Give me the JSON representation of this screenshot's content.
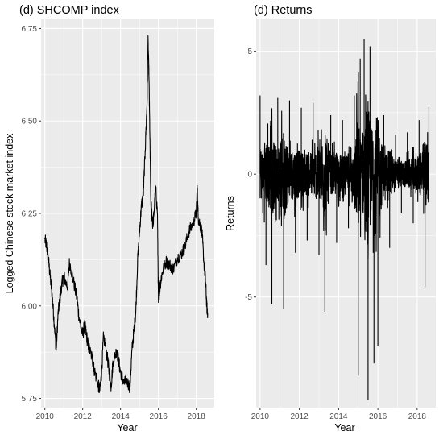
{
  "chart_data": [
    {
      "type": "line",
      "title": "(d) SHCOMP index",
      "xlabel": "Year",
      "ylabel": "Logged Chinese stock market index",
      "xlim": [
        2009.8,
        2018.95
      ],
      "ylim": [
        5.725,
        6.775
      ],
      "x_ticks": [
        2010,
        2012,
        2014,
        2016,
        2018
      ],
      "y_ticks": [
        5.75,
        6.0,
        6.25,
        6.5,
        6.75
      ],
      "y_tick_labels": [
        "5.75",
        "6.00",
        "6.25",
        "6.50",
        "6.75"
      ],
      "grid": true,
      "series": [
        {
          "x": [
            2010.0,
            2010.1,
            2010.2,
            2010.3,
            2010.4,
            2010.5,
            2010.6,
            2010.7,
            2010.8,
            2010.9,
            2011.0,
            2011.2,
            2011.3,
            2011.5,
            2011.7,
            2011.8,
            2012.0,
            2012.1,
            2012.2,
            2012.3,
            2012.5,
            2012.6,
            2012.8,
            2012.9,
            2013.0,
            2013.1,
            2013.3,
            2013.4,
            2013.5,
            2013.6,
            2013.8,
            2013.9,
            2014.0,
            2014.2,
            2014.3,
            2014.5,
            2014.6,
            2014.7,
            2014.8,
            2014.9,
            2015.0,
            2015.1,
            2015.2,
            2015.3,
            2015.4,
            2015.45,
            2015.5,
            2015.55,
            2015.6,
            2015.7,
            2015.75,
            2015.85,
            2015.95,
            2016.0,
            2016.05,
            2016.1,
            2016.2,
            2016.4,
            2016.6,
            2016.8,
            2017.0,
            2017.2,
            2017.4,
            2017.6,
            2017.8,
            2018.0,
            2018.05,
            2018.1,
            2018.2,
            2018.3,
            2018.4,
            2018.5,
            2018.55,
            2018.6
          ],
          "y": [
            6.18,
            6.16,
            6.12,
            6.07,
            6.02,
            5.95,
            5.88,
            5.98,
            6.02,
            6.06,
            6.08,
            6.05,
            6.12,
            6.07,
            6.02,
            5.97,
            5.92,
            5.95,
            5.92,
            5.89,
            5.86,
            5.83,
            5.79,
            5.77,
            5.82,
            5.92,
            5.86,
            5.82,
            5.78,
            5.85,
            5.88,
            5.85,
            5.82,
            5.79,
            5.8,
            5.78,
            5.88,
            5.93,
            5.98,
            6.12,
            6.2,
            6.27,
            6.3,
            6.42,
            6.55,
            6.72,
            6.62,
            6.45,
            6.28,
            6.22,
            6.24,
            6.32,
            6.25,
            6.01,
            6.04,
            6.06,
            6.09,
            6.12,
            6.11,
            6.1,
            6.13,
            6.14,
            6.16,
            6.2,
            6.22,
            6.25,
            6.32,
            6.24,
            6.22,
            6.2,
            6.12,
            6.06,
            6.0,
            5.98
          ]
        }
      ]
    },
    {
      "type": "line",
      "title": "(d) Returns",
      "xlabel": "Year",
      "ylabel": "Returns",
      "xlim": [
        2009.8,
        2018.95
      ],
      "ylim": [
        -9.5,
        6.3
      ],
      "x_ticks": [
        2010,
        2012,
        2014,
        2016,
        2018
      ],
      "y_ticks": [
        5,
        0,
        -5
      ],
      "y_tick_labels": [
        "5",
        "0",
        "-5"
      ],
      "grid": true,
      "series": [
        {
          "x": [
            2010.0,
            2010.3,
            2010.6,
            2010.9,
            2011.2,
            2011.5,
            2011.8,
            2012.1,
            2012.4,
            2012.7,
            2013.0,
            2013.3,
            2013.6,
            2013.9,
            2014.2,
            2014.5,
            2014.8,
            2015.0,
            2015.1,
            2015.3,
            2015.5,
            2015.6,
            2015.8,
            2016.0,
            2016.3,
            2016.6,
            2016.9,
            2017.2,
            2017.5,
            2017.8,
            2018.1,
            2018.4,
            2018.6
          ],
          "y": [
            3.2,
            -3.7,
            -5.3,
            3.1,
            -5.5,
            3.0,
            -3.2,
            2.7,
            -2.7,
            2.9,
            -3.3,
            -5.6,
            2.4,
            -2.8,
            2.2,
            -2.2,
            3.2,
            -8.2,
            4.7,
            5.5,
            -9.2,
            5.2,
            -7.7,
            -7.0,
            2.4,
            -3.0,
            1.6,
            -1.6,
            1.7,
            -2.0,
            2.2,
            -4.6,
            2.8
          ],
          "min": -9.2,
          "max": 5.5
        }
      ]
    }
  ]
}
